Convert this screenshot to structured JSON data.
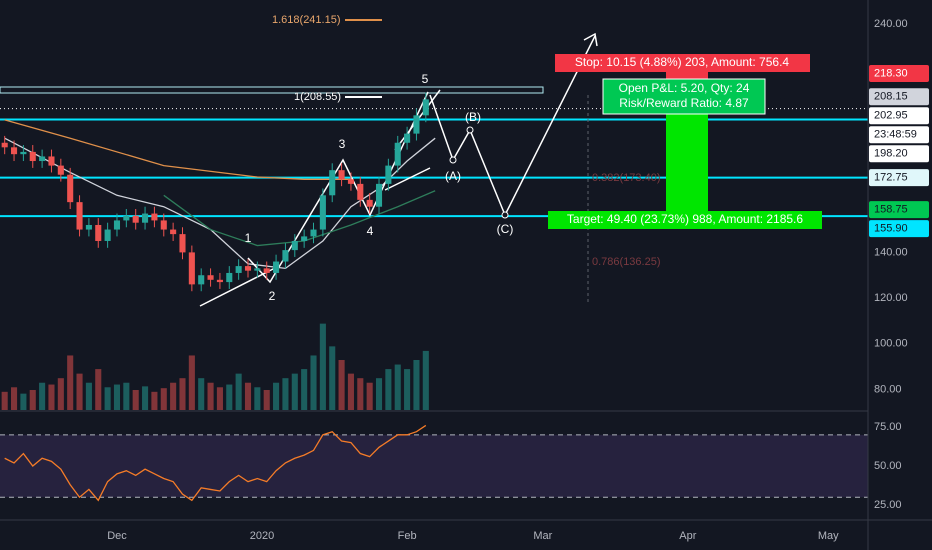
{
  "chart_data": {
    "type": "candlestick",
    "x": [
      -24,
      -22,
      -20,
      -18,
      -16,
      -14,
      -12,
      -10,
      -8,
      -6,
      -4,
      -2,
      0,
      2,
      4,
      6,
      8,
      10,
      12,
      14,
      16,
      18,
      20,
      22,
      24,
      26,
      28,
      30,
      32,
      34,
      36,
      38,
      40,
      42,
      44,
      46,
      48,
      50,
      52,
      54,
      56,
      58,
      60,
      62,
      64,
      66
    ],
    "open": [
      188,
      186,
      183,
      184,
      180,
      182,
      178,
      174,
      162,
      150,
      152,
      145,
      150,
      154,
      156,
      153,
      157,
      154,
      150,
      148,
      140,
      126,
      130,
      128,
      127,
      131,
      134,
      132,
      133,
      131,
      136,
      141,
      145,
      147,
      150,
      165,
      176,
      172,
      170,
      163,
      160,
      170,
      178,
      188,
      192,
      200
    ],
    "high": [
      191,
      189,
      187,
      187,
      185,
      185,
      181,
      177,
      165,
      155,
      155,
      153,
      157,
      159,
      159,
      160,
      160,
      157,
      153,
      151,
      143,
      133,
      133,
      131,
      134,
      137,
      137,
      136,
      136,
      139,
      144,
      148,
      150,
      153,
      168,
      179,
      179,
      175,
      173,
      166,
      173,
      181,
      191,
      195,
      203,
      210
    ],
    "low": [
      183,
      180,
      180,
      177,
      177,
      175,
      171,
      159,
      147,
      147,
      142,
      142,
      147,
      151,
      150,
      150,
      151,
      147,
      145,
      137,
      123,
      123,
      125,
      124,
      124,
      128,
      129,
      129,
      128,
      128,
      133,
      138,
      142,
      144,
      147,
      162,
      169,
      167,
      160,
      157,
      157,
      167,
      175,
      185,
      189,
      197
    ],
    "close": [
      186,
      183,
      184,
      180,
      182,
      178,
      174,
      162,
      150,
      152,
      145,
      150,
      154,
      156,
      153,
      157,
      154,
      150,
      148,
      140,
      126,
      130,
      128,
      127,
      131,
      134,
      132,
      133,
      131,
      136,
      141,
      145,
      147,
      150,
      165,
      176,
      172,
      170,
      163,
      160,
      170,
      178,
      188,
      192,
      200,
      207
    ],
    "volume": [
      20,
      25,
      18,
      22,
      30,
      28,
      35,
      60,
      40,
      30,
      45,
      25,
      28,
      30,
      22,
      26,
      20,
      24,
      30,
      35,
      60,
      35,
      30,
      25,
      28,
      40,
      30,
      25,
      22,
      30,
      35,
      40,
      45,
      60,
      95,
      70,
      55,
      40,
      35,
      30,
      35,
      45,
      50,
      45,
      55,
      65
    ],
    "volume_lim": [
      0,
      110
    ],
    "up_color": "#26a69a",
    "down_color": "#ef5350",
    "xlim": [
      -25,
      160.5
    ],
    "xticks": [
      {
        "value": 0,
        "label": "Dec"
      },
      {
        "value": 31,
        "label": "2020"
      },
      {
        "value": 62,
        "label": "Feb"
      },
      {
        "value": 91,
        "label": "Mar"
      },
      {
        "value": 122,
        "label": "Apr"
      },
      {
        "value": 152,
        "label": "May"
      }
    ],
    "ylim": [
      71,
      250.5
    ],
    "yticks": [
      {
        "value": 240,
        "label": "240.00"
      },
      {
        "value": 140,
        "label": "140.00"
      },
      {
        "value": 120,
        "label": "120.00"
      },
      {
        "value": 100,
        "label": "100.00"
      },
      {
        "value": 80,
        "label": "80.00"
      }
    ],
    "overlays": [
      {
        "color": "#e0904a",
        "x": [
          -24,
          -10,
          10,
          30,
          40,
          50
        ],
        "values": [
          198,
          190,
          178,
          173,
          172,
          172
        ]
      },
      {
        "color": "#d1d4dc",
        "x": [
          -24,
          -10,
          0,
          10,
          20,
          28,
          36,
          44,
          50,
          56,
          62,
          68
        ],
        "values": [
          190,
          175,
          165,
          160,
          150,
          135,
          133,
          145,
          160,
          168,
          180,
          190
        ]
      },
      {
        "color": "#2e7d5b",
        "x": [
          10,
          20,
          30,
          40,
          50,
          60,
          68
        ],
        "values": [
          165,
          150,
          143,
          145,
          152,
          160,
          167
        ]
      }
    ],
    "price_tags": [
      {
        "value": 218.3,
        "label": "218.30",
        "bg": "#f23645",
        "fg": "#ffffff"
      },
      {
        "value": 208.15,
        "label": "208.15",
        "bg": "#d1d4dc",
        "fg": "#131722"
      },
      {
        "value": 202.95,
        "label": "202.95",
        "bg": "#ffffff",
        "fg": "#131722",
        "line": "#ffffff",
        "dash": "1 3",
        "countdown": "23:48:59"
      },
      {
        "value": 198.2,
        "label": "198.20",
        "bg": "#ffffff",
        "fg": "#131722",
        "line": "#00e5ff"
      },
      {
        "value": 172.75,
        "label": "172.75",
        "bg": "#e0f7fa",
        "fg": "#131722",
        "line": "#00e5ff"
      },
      {
        "value": 158.75,
        "label": "158.75",
        "bg": "#00c853",
        "fg": "#131722"
      },
      {
        "value": 155.9,
        "label": "155.90",
        "bg": "#00e5ff",
        "fg": "#131722",
        "line": "#00e5ff"
      }
    ],
    "indicator": {
      "type": "line",
      "color": "#f57c28",
      "values": [
        55,
        52,
        58,
        50,
        55,
        53,
        48,
        38,
        30,
        35,
        28,
        40,
        45,
        47,
        44,
        48,
        45,
        42,
        40,
        32,
        28,
        36,
        35,
        34,
        40,
        44,
        40,
        42,
        40,
        47,
        52,
        55,
        57,
        60,
        70,
        72,
        66,
        65,
        58,
        56,
        62,
        66,
        70,
        70,
        72,
        76
      ],
      "ylim": [
        15.4,
        84
      ],
      "yticks": [
        {
          "value": 75,
          "label": "75.00"
        },
        {
          "value": 50,
          "label": "50.00"
        },
        {
          "value": 25,
          "label": "25.00"
        }
      ],
      "bands": [
        30,
        70
      ]
    },
    "stop_label": "Stop: 10.15 (4.88%) 203, Amount: 756.4",
    "pnl_label": [
      "Open P&L: 5.20, Qty: 24",
      "Risk/Reward Ratio: 4.87"
    ],
    "target_label": "Target: 49.40 (23.73%) 988, Amount: 2185.6",
    "fib_labels": [
      "1.618(241.15)",
      "1(208.55)",
      "0.382(173.40)",
      "0.786(136.25)"
    ],
    "wave_labels": [
      "1",
      "2",
      "3",
      "4",
      "5",
      "(A)",
      "(B)",
      "(C)"
    ]
  }
}
